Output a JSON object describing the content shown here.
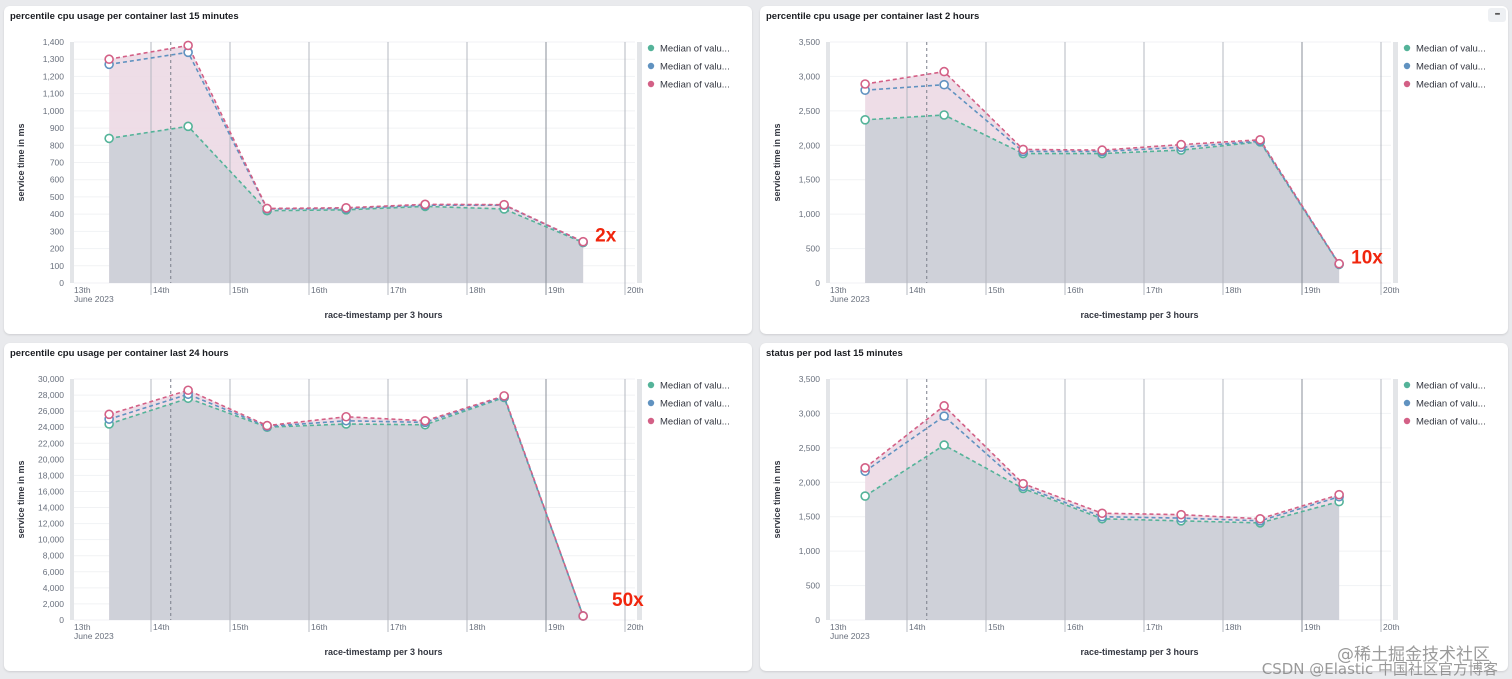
{
  "colors": {
    "series_green": "#54b399",
    "series_blue": "#6092c0",
    "series_pink": "#d36086",
    "annotation": "#f0250d",
    "area_fill": "#cfd1d9",
    "area_pink": "#ecd9e4"
  },
  "menu_icon": "ellipsis-icon",
  "watermark": {
    "line1": "@稀土掘金技术社区",
    "line2": "CSDN @Elastic 中国社区官方博客"
  },
  "chart_data": [
    {
      "type": "area",
      "title": "percentile cpu usage per container last 15 minutes",
      "xlabel": "race-timestamp per 3 hours",
      "ylabel": "service time in ms",
      "ylim": [
        0,
        1400
      ],
      "yticks": [
        "0",
        "100",
        "200",
        "300",
        "400",
        "500",
        "600",
        "700",
        "800",
        "900",
        "1,000",
        "1,100",
        "1,200",
        "1,300",
        "1,400"
      ],
      "ytick_values": [
        0,
        100,
        200,
        300,
        400,
        500,
        600,
        700,
        800,
        900,
        1000,
        1100,
        1200,
        1300,
        1400
      ],
      "xticks": [
        "13th",
        "14th",
        "15th",
        "16th",
        "17th",
        "18th",
        "19th",
        "20th"
      ],
      "xtick_sub": "June 2023",
      "x_days": [
        0.47,
        1.47,
        2.47,
        3.47,
        4.47,
        5.47,
        6.47
      ],
      "legend": [
        "Median of valu...",
        "Median of valu...",
        "Median of valu..."
      ],
      "legend_position": "right",
      "annotation": "2x",
      "series": [
        {
          "name": "Median of valu...",
          "color": "green",
          "values": [
            840,
            910,
            420,
            425,
            445,
            430,
            235
          ]
        },
        {
          "name": "Median of valu...",
          "color": "blue",
          "values": [
            1270,
            1340,
            430,
            432,
            452,
            452,
            238
          ]
        },
        {
          "name": "Median of valu...",
          "color": "pink",
          "values": [
            1300,
            1380,
            433,
            437,
            457,
            455,
            240
          ]
        }
      ]
    },
    {
      "type": "area",
      "title": "percentile cpu usage per container last 2 hours",
      "xlabel": "race-timestamp per 3 hours",
      "ylabel": "service time in ms",
      "ylim": [
        0,
        3500
      ],
      "yticks": [
        "0",
        "500",
        "1,000",
        "1,500",
        "2,000",
        "2,500",
        "3,000",
        "3,500"
      ],
      "ytick_values": [
        0,
        500,
        1000,
        1500,
        2000,
        2500,
        3000,
        3500
      ],
      "xticks": [
        "13th",
        "14th",
        "15th",
        "16th",
        "17th",
        "18th",
        "19th",
        "20th"
      ],
      "xtick_sub": "June 2023",
      "x_days": [
        0.47,
        1.47,
        2.47,
        3.47,
        4.47,
        5.47,
        6.47
      ],
      "legend": [
        "Median of valu...",
        "Median of valu...",
        "Median of valu..."
      ],
      "legend_position": "right",
      "annotation": "10x",
      "series": [
        {
          "name": "Median of valu...",
          "color": "green",
          "values": [
            2370,
            2440,
            1880,
            1880,
            1930,
            2050,
            270
          ]
        },
        {
          "name": "Median of valu...",
          "color": "blue",
          "values": [
            2800,
            2880,
            1910,
            1910,
            1970,
            2060,
            275
          ]
        },
        {
          "name": "Median of valu...",
          "color": "pink",
          "values": [
            2890,
            3070,
            1940,
            1930,
            2010,
            2080,
            280
          ]
        }
      ]
    },
    {
      "type": "area",
      "title": "percentile cpu usage per container last 24 hours",
      "xlabel": "race-timestamp per 3 hours",
      "ylabel": "service time in ms",
      "ylim": [
        0,
        30000
      ],
      "yticks": [
        "0",
        "2,000",
        "4,000",
        "6,000",
        "8,000",
        "10,000",
        "12,000",
        "14,000",
        "16,000",
        "18,000",
        "20,000",
        "22,000",
        "24,000",
        "26,000",
        "28,000",
        "30,000"
      ],
      "ytick_values": [
        0,
        2000,
        4000,
        6000,
        8000,
        10000,
        12000,
        14000,
        16000,
        18000,
        20000,
        22000,
        24000,
        26000,
        28000,
        30000
      ],
      "xticks": [
        "13th",
        "14th",
        "15th",
        "16th",
        "17th",
        "18th",
        "19th",
        "20th"
      ],
      "xtick_sub": "June 2023",
      "x_days": [
        0.47,
        1.47,
        2.47,
        3.47,
        4.47,
        5.47,
        6.47
      ],
      "legend": [
        "Median of valu...",
        "Median of valu...",
        "Median of valu..."
      ],
      "legend_position": "right",
      "annotation": "50x",
      "series": [
        {
          "name": "Median of valu...",
          "color": "green",
          "values": [
            24400,
            27600,
            24000,
            24400,
            24300,
            27700,
            500
          ]
        },
        {
          "name": "Median of valu...",
          "color": "blue",
          "values": [
            25000,
            28100,
            24100,
            24800,
            24600,
            27800,
            500
          ]
        },
        {
          "name": "Median of valu...",
          "color": "pink",
          "values": [
            25600,
            28600,
            24200,
            25300,
            24800,
            27900,
            500
          ]
        }
      ]
    },
    {
      "type": "area",
      "title": "status per pod last 15 minutes",
      "xlabel": "race-timestamp per 3 hours",
      "ylabel": "service time in ms",
      "ylim": [
        0,
        3500
      ],
      "yticks": [
        "0",
        "500",
        "1,000",
        "1,500",
        "2,000",
        "2,500",
        "3,000",
        "3,500"
      ],
      "ytick_values": [
        0,
        500,
        1000,
        1500,
        2000,
        2500,
        3000,
        3500
      ],
      "xticks": [
        "13th",
        "14th",
        "15th",
        "16th",
        "17th",
        "18th",
        "19th",
        "20th"
      ],
      "xtick_sub": "June 2023",
      "x_days": [
        0.47,
        1.47,
        2.47,
        3.47,
        4.47,
        5.47,
        6.47
      ],
      "legend": [
        "Median of valu...",
        "Median of valu...",
        "Median of valu..."
      ],
      "legend_position": "right",
      "annotation": "",
      "series": [
        {
          "name": "Median of valu...",
          "color": "green",
          "values": [
            1800,
            2540,
            1910,
            1470,
            1440,
            1410,
            1720
          ]
        },
        {
          "name": "Median of valu...",
          "color": "blue",
          "values": [
            2160,
            2960,
            1940,
            1500,
            1480,
            1440,
            1790
          ]
        },
        {
          "name": "Median of valu...",
          "color": "pink",
          "values": [
            2210,
            3110,
            1980,
            1550,
            1530,
            1470,
            1820
          ]
        }
      ]
    }
  ]
}
